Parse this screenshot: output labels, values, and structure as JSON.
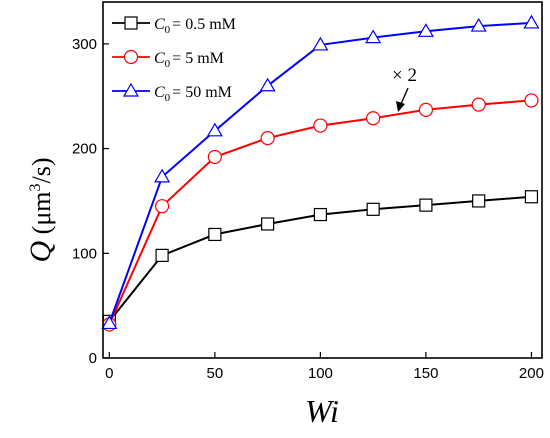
{
  "chart_data": {
    "type": "line",
    "xlabel": "Wi",
    "ylabel": {
      "symbol": "Q",
      "unit_open": " (μm",
      "unit_exp": "3",
      "unit_close": "/s)"
    },
    "xlim": [
      -3,
      205
    ],
    "ylim": [
      0,
      340
    ],
    "xticks": [
      0,
      50,
      100,
      150,
      200
    ],
    "yticks": [
      0,
      100,
      200,
      300
    ],
    "grid": false,
    "legend_position": "top-left",
    "series": [
      {
        "name": "C0 = 0.5 mM",
        "legend": {
          "sym": "C",
          "sub": "0",
          "rest": "= 0.5 mM"
        },
        "color": "#000000",
        "marker": "square",
        "x": [
          0,
          25,
          50,
          75,
          100,
          125,
          150,
          175,
          200
        ],
        "y": [
          35,
          98,
          118,
          128,
          137,
          142,
          146,
          150,
          154
        ]
      },
      {
        "name": "C0 = 5 mM",
        "legend": {
          "sym": "C",
          "sub": "0",
          "rest": "= 5 mM"
        },
        "color": "#ff0000",
        "marker": "circle",
        "x": [
          0,
          25,
          50,
          75,
          100,
          125,
          150,
          175,
          200
        ],
        "y": [
          32,
          145,
          192,
          210,
          222,
          229,
          237,
          242,
          246
        ]
      },
      {
        "name": "C0 = 50 mM",
        "legend": {
          "sym": "C",
          "sub": "0",
          "rest": "= 50 mM"
        },
        "color": "#0000ff",
        "marker": "triangle",
        "x": [
          0,
          25,
          50,
          75,
          100,
          125,
          150,
          175,
          200
        ],
        "y": [
          33,
          173,
          217,
          260,
          299,
          306,
          312,
          317,
          320
        ]
      }
    ],
    "annotations": [
      {
        "text": "× 2",
        "target_series": "C0 = 5 mM"
      }
    ]
  }
}
